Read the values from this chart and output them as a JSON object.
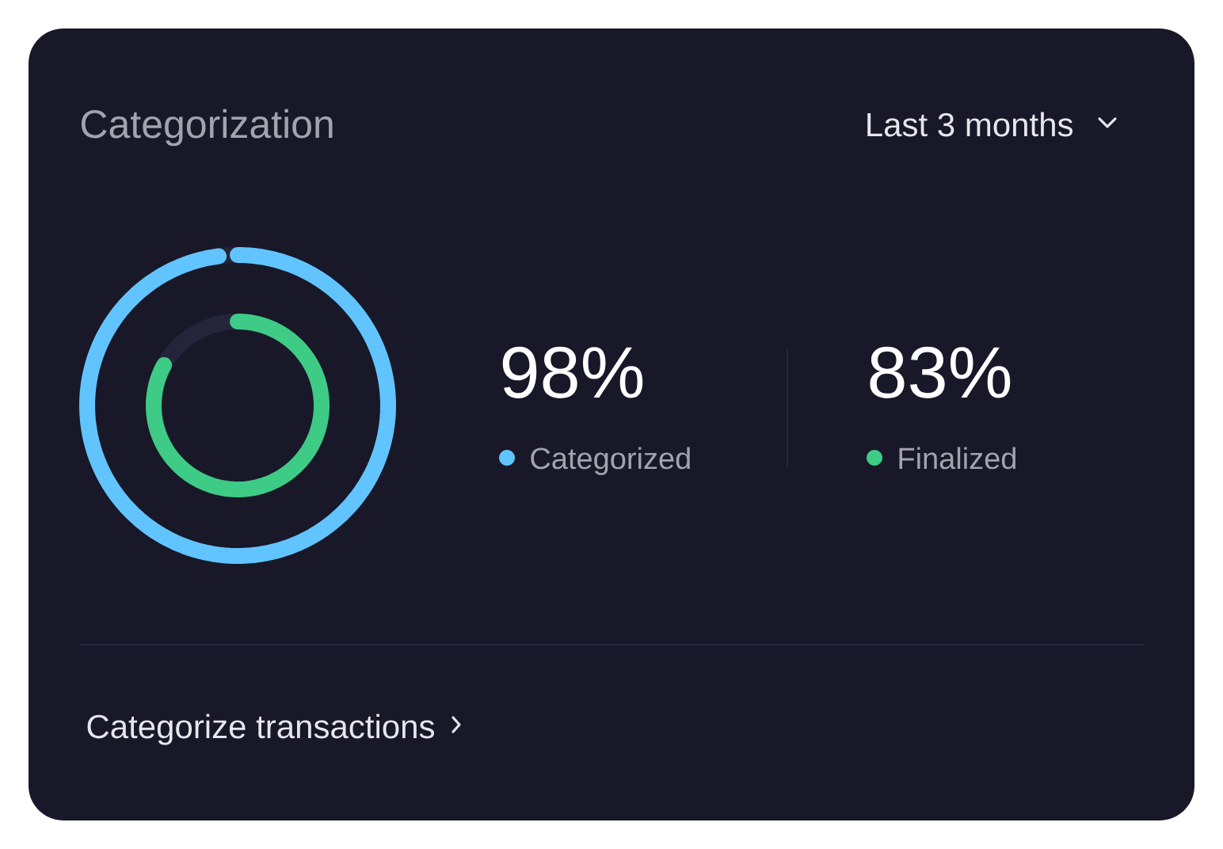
{
  "chart_data": {
    "type": "other",
    "title": "Categorization",
    "categories": [
      "Categorized",
      "Finalized"
    ],
    "values": [
      98,
      83
    ],
    "value_labels": [
      "98%",
      "83%"
    ],
    "colors": [
      "#62c4fe",
      "#3ecb85"
    ],
    "annotations": [
      "Last 3 months",
      "Categorize transactions"
    ]
  }
}
